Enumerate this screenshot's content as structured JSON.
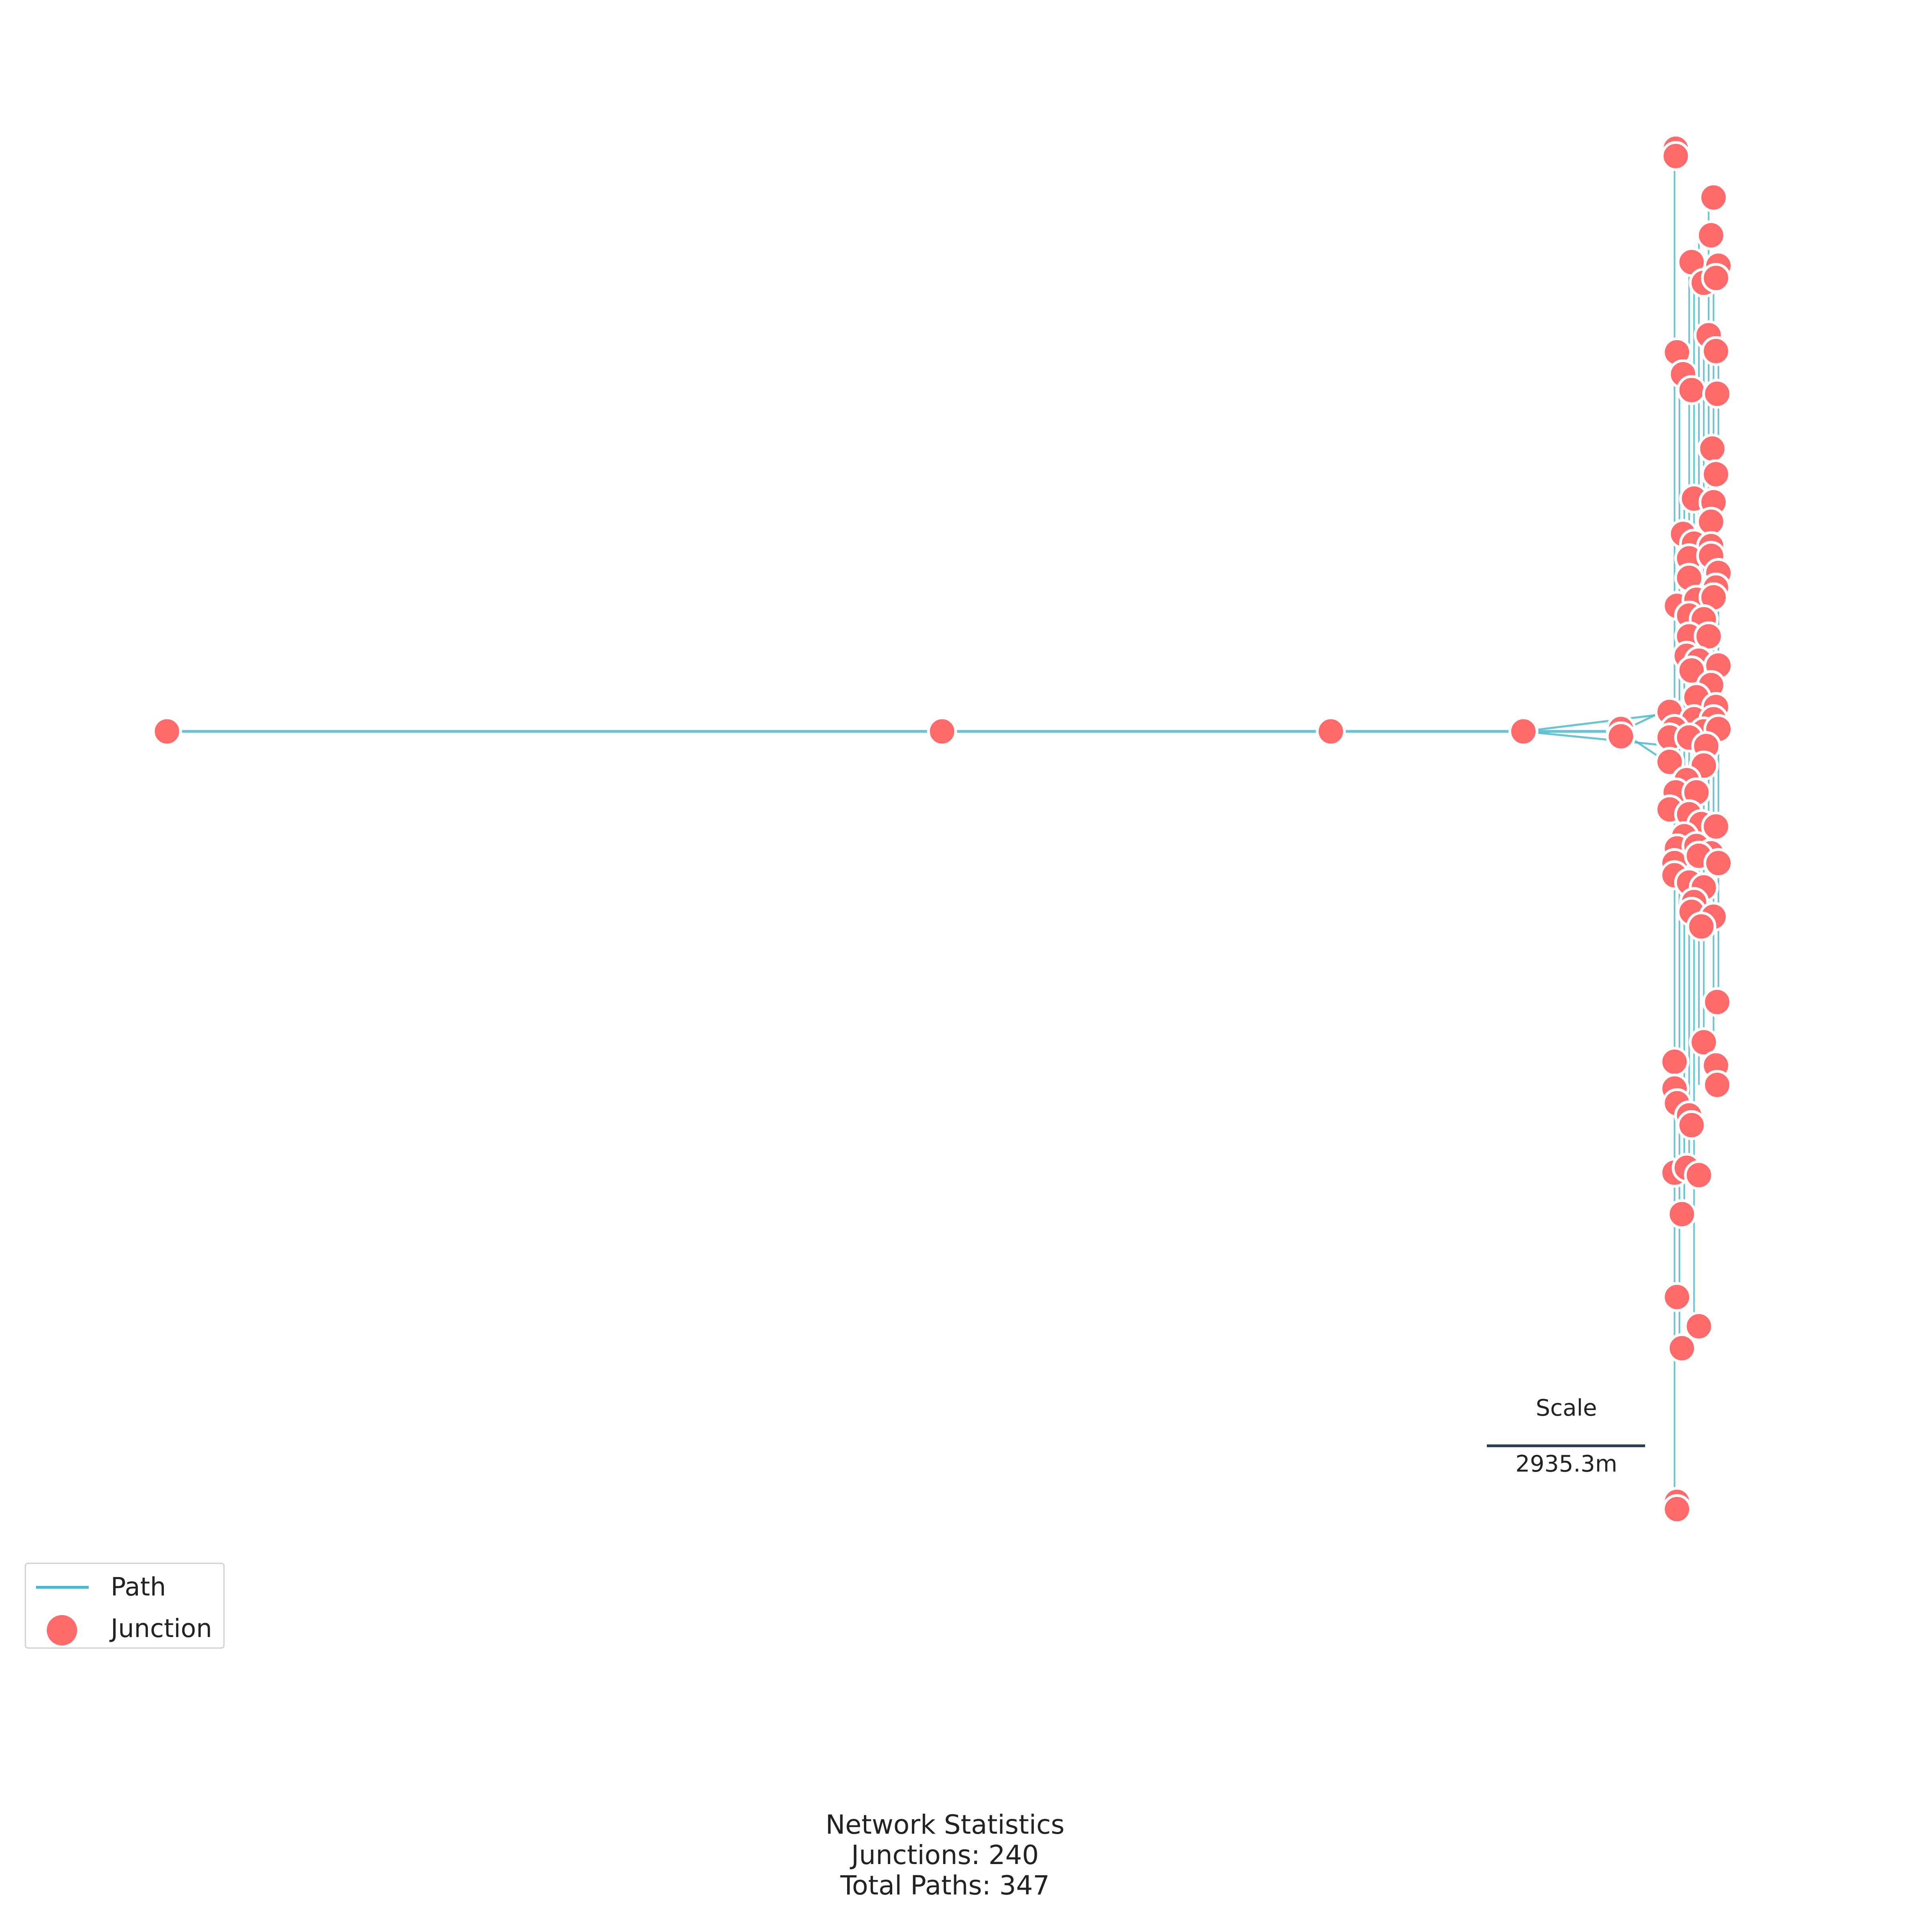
{
  "legend": {
    "path_label": "Path",
    "junction_label": "Junction"
  },
  "scale": {
    "title": "Scale",
    "value": "2935.3m"
  },
  "stats": {
    "title": "Network Statistics",
    "junctions_line": "Junctions: 240",
    "paths_line": "Total Paths: 347"
  },
  "colors": {
    "path": "#4db8cc",
    "junction": "#ff6b6b",
    "junction_outline": "#ffffff",
    "scale_bar": "#2c3e50"
  }
}
